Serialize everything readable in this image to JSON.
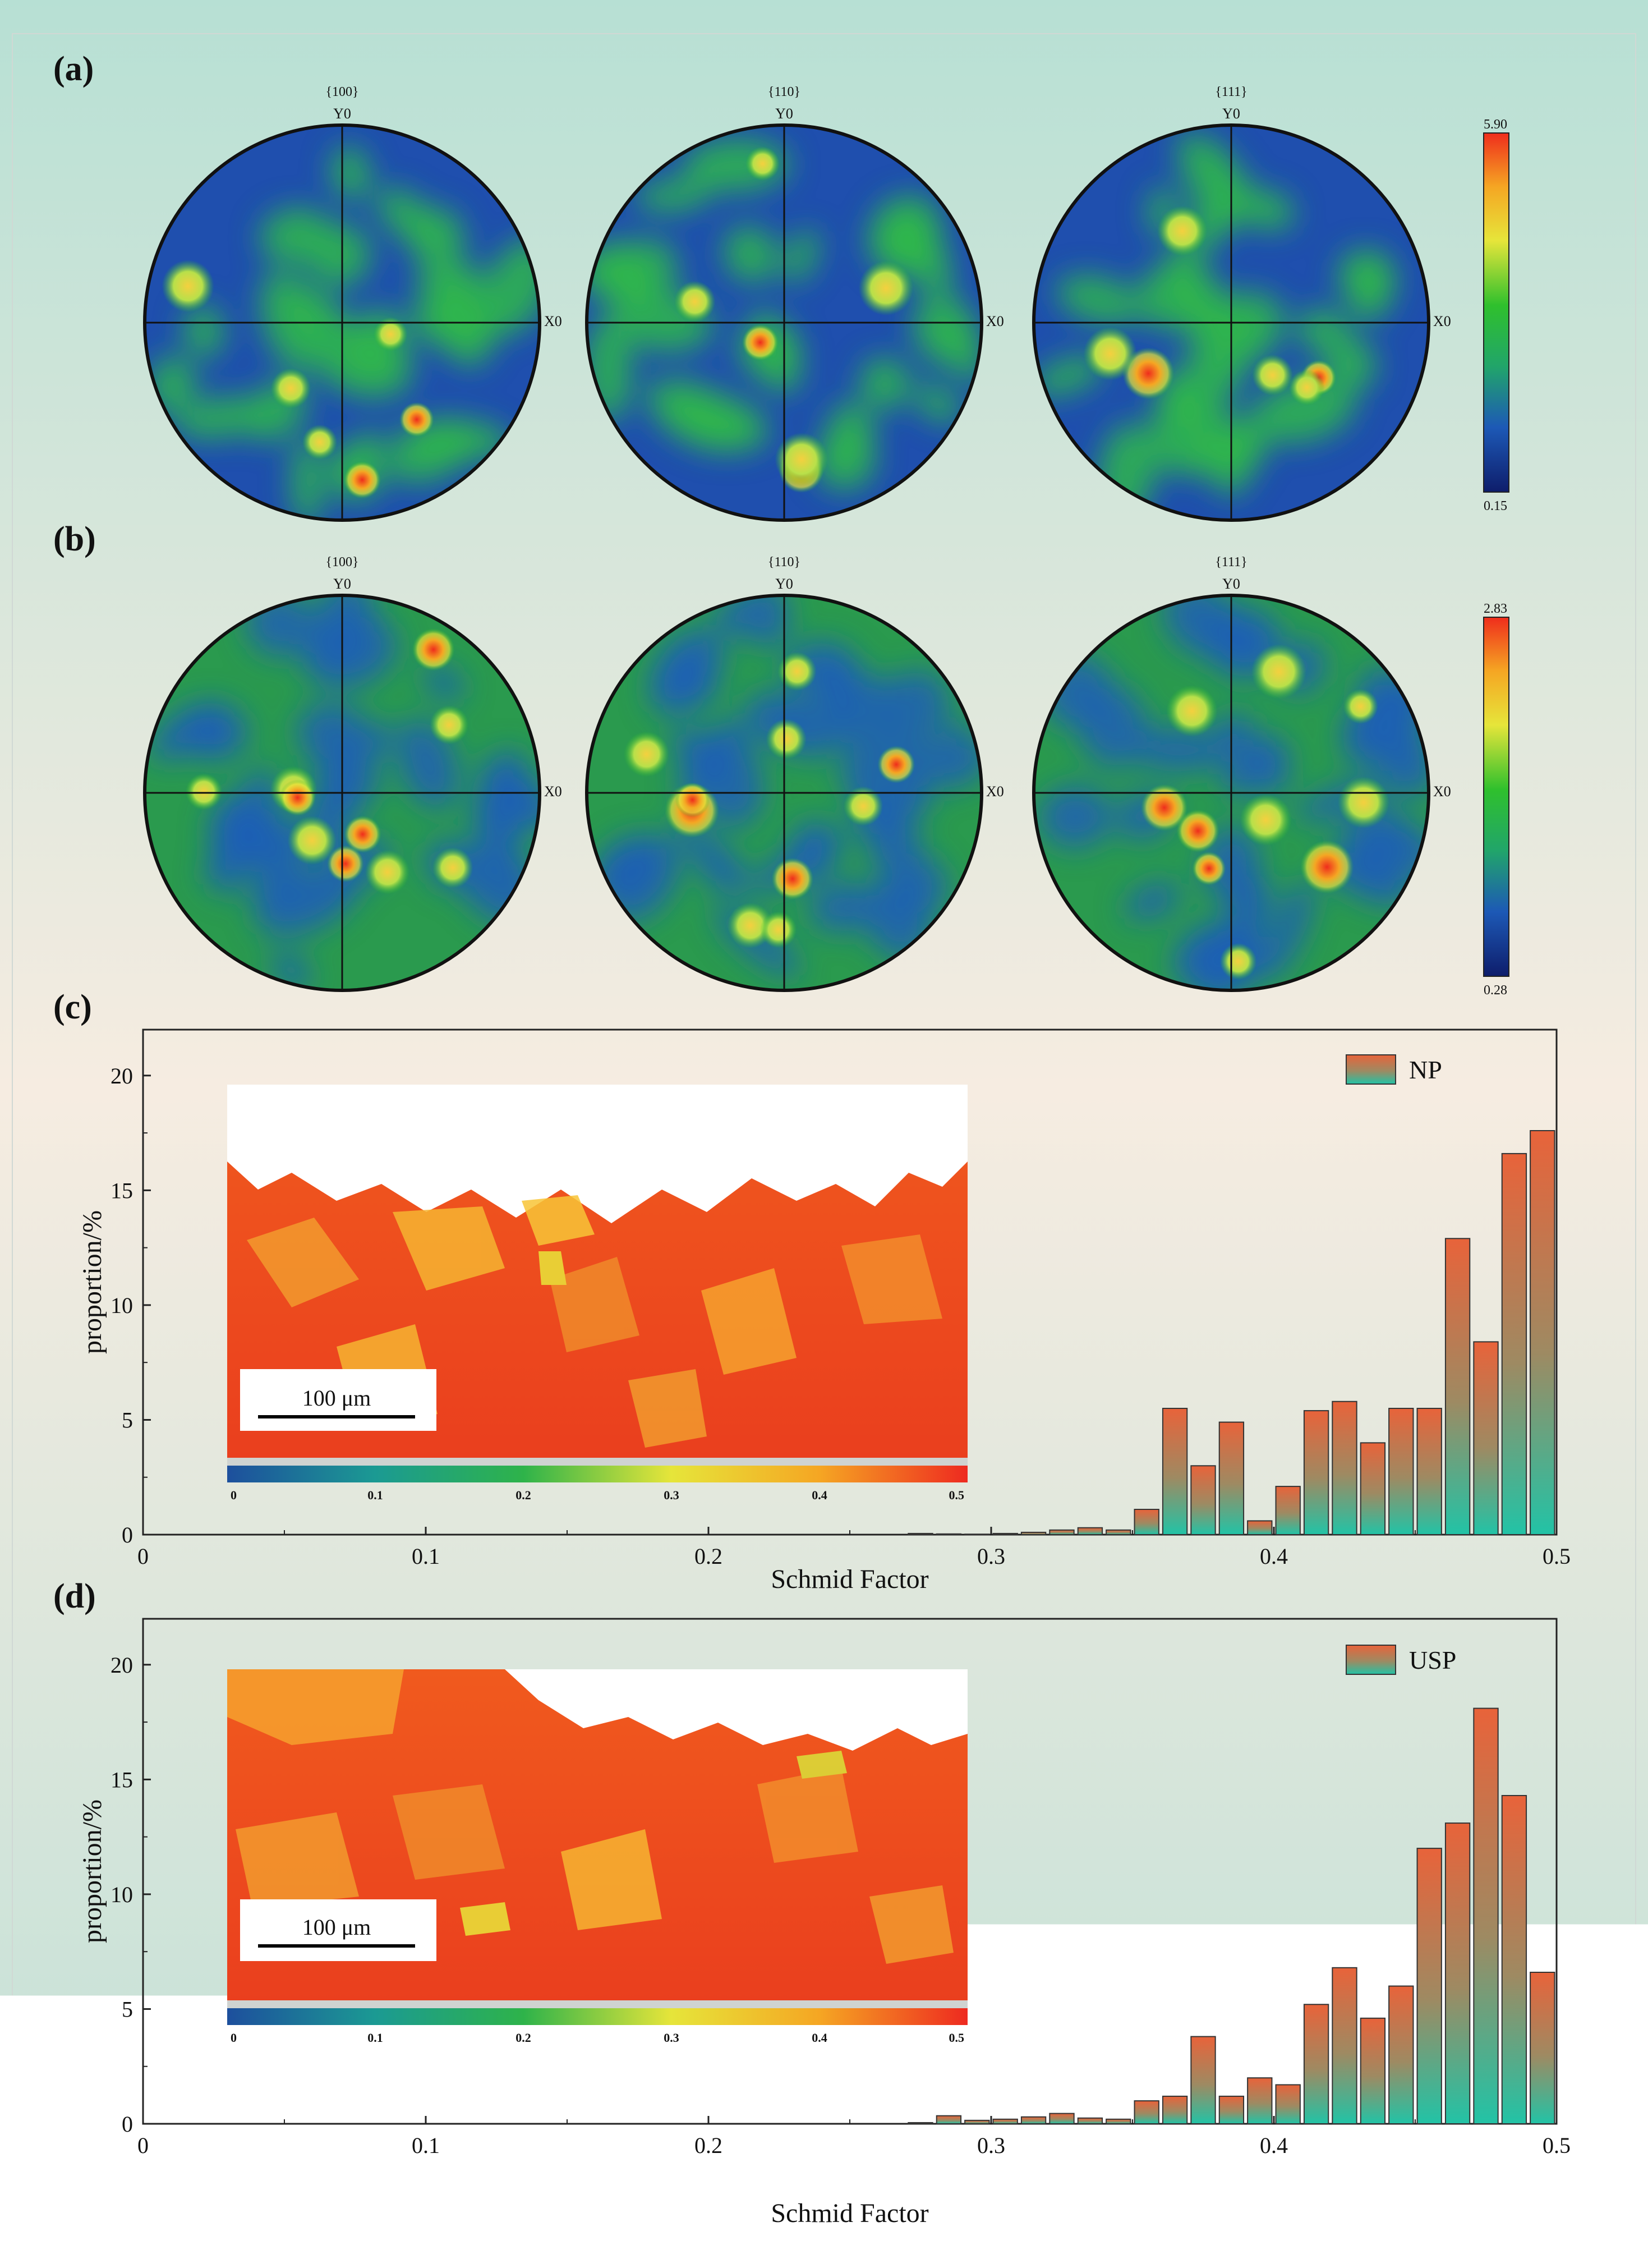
{
  "background": {
    "top": "#b7e0d4",
    "middle": "#f6ece1",
    "bottom": "#bfe0d6"
  },
  "pole_figures": [
    {
      "label": "(a)",
      "colorbar": {
        "max": "5.90",
        "min": "0.15"
      },
      "figures": [
        {
          "plane": "{100}",
          "y_label": "Y0",
          "x_label": "X0"
        },
        {
          "plane": "{110}",
          "y_label": "Y0",
          "x_label": "X0"
        },
        {
          "plane": "{111}",
          "y_label": "Y0",
          "x_label": "X0"
        }
      ]
    },
    {
      "label": "(b)",
      "colorbar": {
        "max": "2.83",
        "min": "0.28"
      },
      "figures": [
        {
          "plane": "{100}",
          "y_label": "Y0",
          "x_label": "X0"
        },
        {
          "plane": "{110}",
          "y_label": "Y0",
          "x_label": "X0"
        },
        {
          "plane": "{111}",
          "y_label": "Y0",
          "x_label": "X0"
        }
      ]
    }
  ],
  "chart_data": [
    {
      "panel": "(c)",
      "type": "bar",
      "title": "",
      "xlabel": "Schmid Factor",
      "ylabel": "proportion/%",
      "xlim": [
        0,
        0.5
      ],
      "ylim": [
        0,
        22
      ],
      "xticks": [
        "0",
        "0.1",
        "0.2",
        "0.3",
        "0.4",
        "0.5"
      ],
      "yticks": [
        "0",
        "5",
        "10",
        "15",
        "20"
      ],
      "legend": "NP",
      "legend_position": "top-right",
      "x": [
        0.27,
        0.28,
        0.29,
        0.3,
        0.31,
        0.32,
        0.33,
        0.34,
        0.35,
        0.36,
        0.37,
        0.38,
        0.39,
        0.4,
        0.41,
        0.42,
        0.43,
        0.44,
        0.45,
        0.46,
        0.47,
        0.48,
        0.49
      ],
      "values": [
        0.05,
        0.03,
        0.02,
        0.05,
        0.1,
        0.2,
        0.3,
        0.2,
        1.1,
        5.5,
        3.0,
        4.9,
        0.6,
        2.1,
        5.4,
        5.8,
        4.0,
        5.5,
        5.5,
        12.9,
        8.4,
        16.6,
        17.6
      ],
      "inset": {
        "scale_bar": "100 μm",
        "colorbar_ticks": [
          "0",
          "0.1",
          "0.2",
          "0.3",
          "0.4",
          "0.5"
        ]
      }
    },
    {
      "panel": "(d)",
      "type": "bar",
      "title": "",
      "xlabel": "Schmid Factor",
      "ylabel": "proportion/%",
      "xlim": [
        0,
        0.5
      ],
      "ylim": [
        0,
        22
      ],
      "xticks": [
        "0",
        "0.1",
        "0.2",
        "0.3",
        "0.4",
        "0.5"
      ],
      "yticks": [
        "0",
        "5",
        "10",
        "15",
        "20"
      ],
      "legend": "USP",
      "legend_position": "top-right",
      "x": [
        0.27,
        0.28,
        0.29,
        0.3,
        0.31,
        0.32,
        0.33,
        0.34,
        0.35,
        0.36,
        0.37,
        0.38,
        0.39,
        0.4,
        0.41,
        0.42,
        0.43,
        0.44,
        0.45,
        0.46,
        0.47,
        0.48,
        0.49
      ],
      "values": [
        0.05,
        0.35,
        0.15,
        0.2,
        0.3,
        0.45,
        0.25,
        0.2,
        1.0,
        1.2,
        3.8,
        1.2,
        2.0,
        1.7,
        5.2,
        6.8,
        4.6,
        6.0,
        12.0,
        13.1,
        18.1,
        14.3,
        6.6
      ],
      "inset": {
        "scale_bar": "100 μm",
        "colorbar_ticks": [
          "0",
          "0.1",
          "0.2",
          "0.3",
          "0.4",
          "0.5"
        ]
      }
    }
  ]
}
